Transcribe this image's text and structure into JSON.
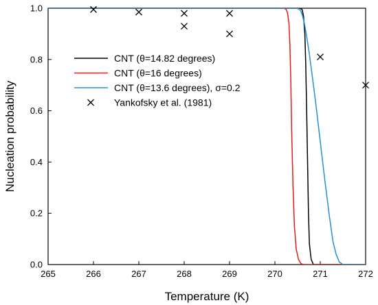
{
  "chart_data": {
    "type": "line",
    "xlabel": "Temperature (K)",
    "ylabel": "Nucleation probability",
    "xlim": [
      265,
      272
    ],
    "ylim": [
      0.0,
      1.0
    ],
    "x_ticks": [
      "265",
      "266",
      "267",
      "268",
      "269",
      "270",
      "271",
      "272"
    ],
    "y_ticks": [
      "0.0",
      "0.2",
      "0.4",
      "0.6",
      "0.8",
      "1.0"
    ],
    "grid": false,
    "legend_position": "upper-left",
    "series": [
      {
        "name": "CNT (θ=14.82 degrees)",
        "kind": "line",
        "color": "#000000",
        "x": [
          265,
          270.55,
          270.6,
          270.63,
          270.66,
          270.68,
          270.7,
          270.72,
          270.74,
          270.76,
          270.8,
          270.85,
          272
        ],
        "y": [
          1.0,
          1.0,
          0.995,
          0.97,
          0.9,
          0.78,
          0.6,
          0.4,
          0.2,
          0.08,
          0.02,
          0.0,
          0.0
        ]
      },
      {
        "name": "CNT (θ=16 degrees)",
        "kind": "line",
        "color": "#e31a1c",
        "x": [
          265,
          270.2,
          270.25,
          270.28,
          270.31,
          270.33,
          270.35,
          270.37,
          270.4,
          270.43,
          270.47,
          270.52,
          270.57,
          270.62,
          272
        ],
        "y": [
          1.0,
          1.0,
          0.995,
          0.98,
          0.94,
          0.86,
          0.72,
          0.52,
          0.3,
          0.15,
          0.06,
          0.02,
          0.005,
          0.0,
          0.0
        ]
      },
      {
        "name": "CNT (θ=13.6 degrees), σ=0.2",
        "kind": "line",
        "color": "#1f8fdc",
        "x": [
          265,
          270.45,
          270.52,
          270.57,
          270.61,
          270.65,
          270.7,
          270.76,
          270.82,
          270.9,
          271.0,
          271.1,
          271.2,
          271.28,
          271.35,
          271.42,
          271.5,
          272
        ],
        "y": [
          1.0,
          1.0,
          0.998,
          0.99,
          0.97,
          0.94,
          0.89,
          0.82,
          0.74,
          0.63,
          0.48,
          0.33,
          0.19,
          0.09,
          0.04,
          0.01,
          0.0,
          0.0
        ]
      },
      {
        "name": "Yankofsky et al. (1981)",
        "kind": "marker",
        "marker": "x",
        "color": "#000000",
        "x": [
          266,
          267,
          268,
          268,
          269,
          269,
          271,
          272
        ],
        "y": [
          0.995,
          0.985,
          0.98,
          0.93,
          0.98,
          0.9,
          0.81,
          0.7
        ]
      }
    ]
  }
}
